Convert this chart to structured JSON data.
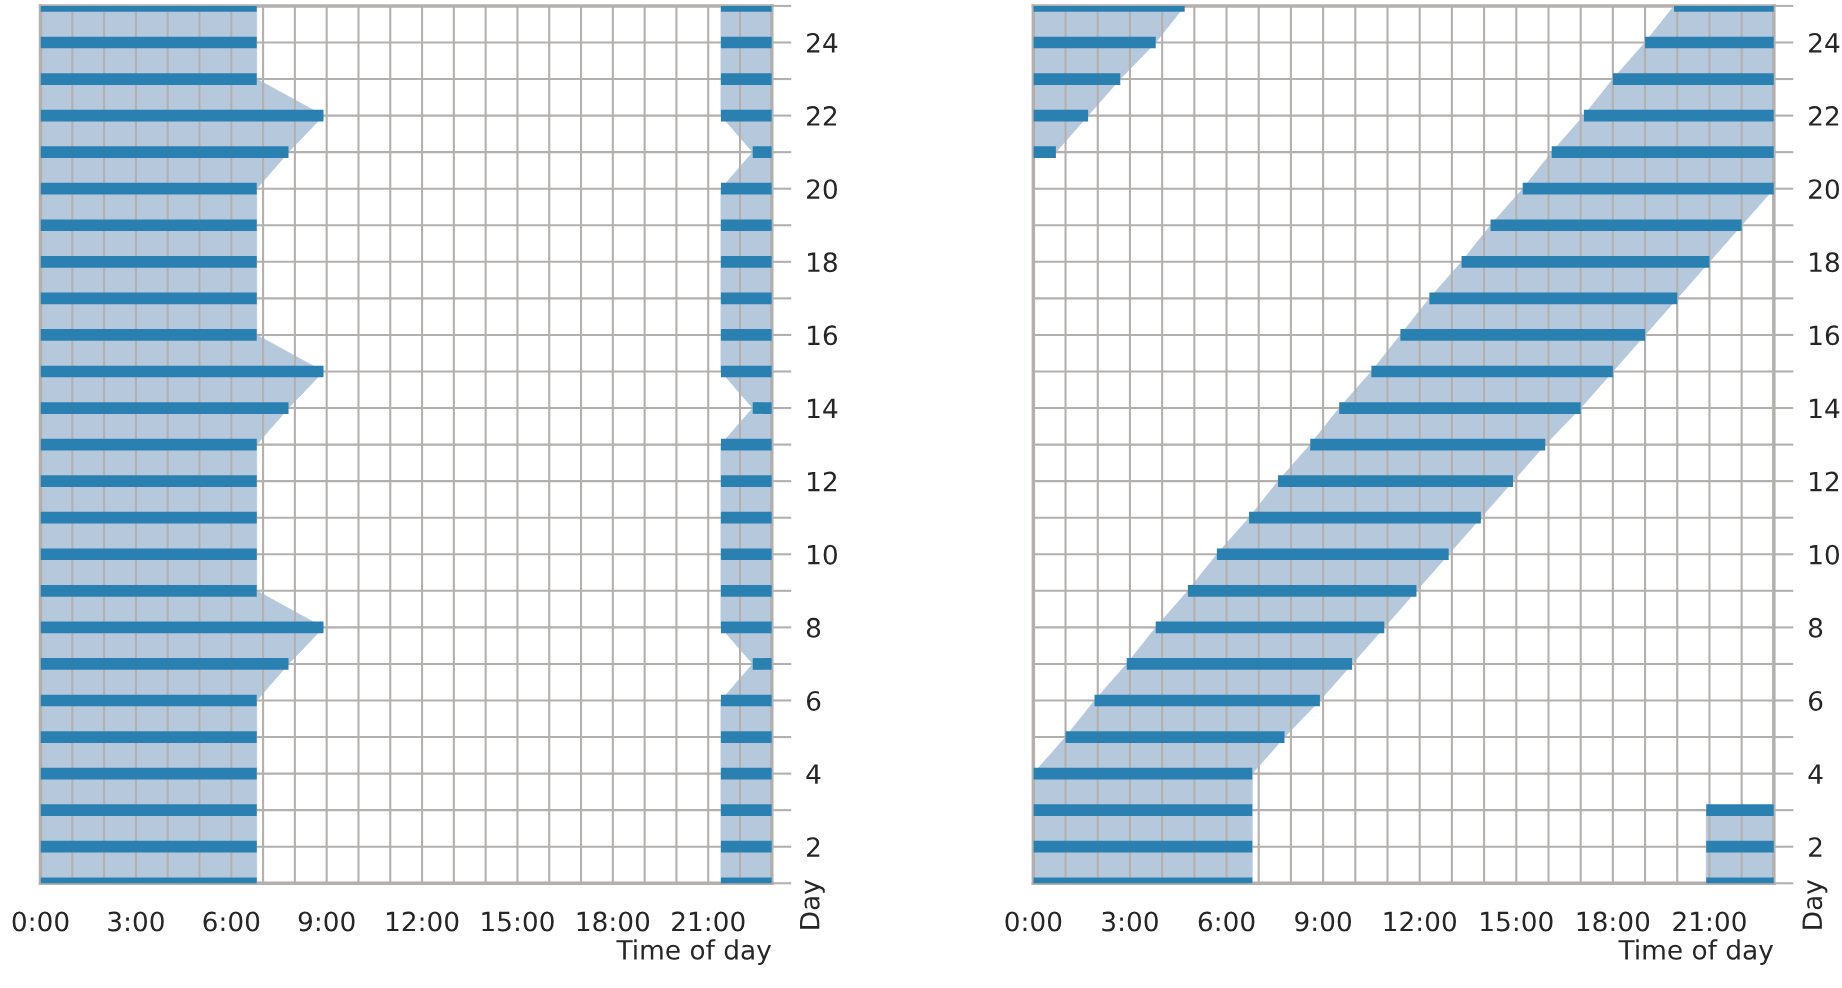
{
  "chart_data": [
    {
      "type": "bar",
      "orientation": "horizontal",
      "xlabel": "Time of day",
      "ylabel": "Day",
      "grid": true,
      "legend": false,
      "categories": [
        null,
        "24",
        null,
        "22",
        null,
        "20",
        null,
        "18",
        null,
        "16",
        null,
        "14",
        null,
        "12",
        null,
        "10",
        null,
        "8",
        null,
        "6",
        null,
        "4",
        null,
        "2",
        null
      ],
      "xlim": [
        0,
        23
      ],
      "xticks": [
        {
          "value": 0,
          "label": "0:00"
        },
        {
          "value": 1,
          "label": null
        },
        {
          "value": 2,
          "label": null
        },
        {
          "value": 3,
          "label": "3:00"
        },
        {
          "value": 4,
          "label": null
        },
        {
          "value": 5,
          "label": null
        },
        {
          "value": 6,
          "label": "6:00"
        },
        {
          "value": 7,
          "label": null
        },
        {
          "value": 8,
          "label": null
        },
        {
          "value": 9,
          "label": "9:00"
        },
        {
          "value": 10,
          "label": null
        },
        {
          "value": 11,
          "label": null
        },
        {
          "value": 12,
          "label": "12:00"
        },
        {
          "value": 13,
          "label": null
        },
        {
          "value": 14,
          "label": null
        },
        {
          "value": 15,
          "label": "15:00"
        },
        {
          "value": 16,
          "label": null
        },
        {
          "value": 17,
          "label": null
        },
        {
          "value": 18,
          "label": "18:00"
        },
        {
          "value": 19,
          "label": null
        },
        {
          "value": 20,
          "label": null
        },
        {
          "value": 21,
          "label": "21:00"
        },
        {
          "value": 22,
          "label": null
        },
        {
          "value": 23,
          "label": null
        }
      ],
      "series": [
        {
          "color": "#2a80b1",
          "base": [
            0,
            0,
            0,
            0,
            0,
            0,
            0,
            0,
            0,
            0,
            0,
            0,
            0,
            0,
            0,
            0,
            0,
            0,
            0,
            0,
            0,
            0,
            0,
            0,
            0
          ],
          "values": [
            6.8,
            6.8,
            6.8,
            8.9,
            7.8,
            6.8,
            6.8,
            6.8,
            6.8,
            6.8,
            8.9,
            7.8,
            6.8,
            6.8,
            6.8,
            6.8,
            6.8,
            8.9,
            7.8,
            6.8,
            6.8,
            6.8,
            6.8,
            6.8,
            6.8
          ]
        },
        {
          "color": "#2a80b1",
          "base": [
            21.4,
            21.4,
            21.4,
            21.4,
            22.4,
            21.4,
            21.4,
            21.4,
            21.4,
            21.4,
            21.4,
            22.4,
            21.4,
            21.4,
            21.4,
            21.4,
            21.4,
            21.4,
            22.4,
            21.4,
            21.4,
            21.4,
            21.4,
            21.4,
            21.4
          ],
          "values": [
            1.6,
            1.6,
            1.6,
            1.6,
            0.6,
            1.6,
            1.6,
            1.6,
            1.6,
            1.6,
            1.6,
            0.6,
            1.6,
            1.6,
            1.6,
            1.6,
            1.6,
            1.6,
            0.6,
            1.6,
            1.6,
            1.6,
            1.6,
            1.6,
            1.6
          ]
        }
      ]
    },
    {
      "type": "bar",
      "orientation": "horizontal",
      "xlabel": "Time of day",
      "ylabel": "Day",
      "grid": true,
      "legend": false,
      "categories": [
        null,
        "24",
        null,
        "22",
        null,
        "20",
        null,
        "18",
        null,
        "16",
        null,
        "14",
        null,
        "12",
        null,
        "10",
        null,
        "8",
        null,
        "6",
        null,
        "4",
        null,
        "2",
        null
      ],
      "xlim": [
        0,
        23
      ],
      "xticks": [
        {
          "value": 0,
          "label": "0:00"
        },
        {
          "value": 1,
          "label": null
        },
        {
          "value": 2,
          "label": null
        },
        {
          "value": 3,
          "label": "3:00"
        },
        {
          "value": 4,
          "label": null
        },
        {
          "value": 5,
          "label": null
        },
        {
          "value": 6,
          "label": "6:00"
        },
        {
          "value": 7,
          "label": null
        },
        {
          "value": 8,
          "label": null
        },
        {
          "value": 9,
          "label": "9:00"
        },
        {
          "value": 10,
          "label": null
        },
        {
          "value": 11,
          "label": null
        },
        {
          "value": 12,
          "label": "12:00"
        },
        {
          "value": 13,
          "label": null
        },
        {
          "value": 14,
          "label": null
        },
        {
          "value": 15,
          "label": "15:00"
        },
        {
          "value": 16,
          "label": null
        },
        {
          "value": 17,
          "label": null
        },
        {
          "value": 18,
          "label": "18:00"
        },
        {
          "value": 19,
          "label": null
        },
        {
          "value": 20,
          "label": null
        },
        {
          "value": 21,
          "label": "21:00"
        },
        {
          "value": 22,
          "label": null
        },
        {
          "value": 23,
          "label": null
        }
      ],
      "series": [
        {
          "color": "#2a80b1",
          "base": [
            19.9,
            19.0,
            18.0,
            17.1,
            16.1,
            15.2,
            14.2,
            13.3,
            12.3,
            11.4,
            10.5,
            9.5,
            8.6,
            7.6,
            6.7,
            5.7,
            4.8,
            3.8,
            2.9,
            1.9,
            1.0,
            0,
            0,
            0,
            0
          ],
          "values": [
            3.1,
            4.0,
            5.0,
            5.9,
            6.9,
            7.8,
            7.8,
            7.7,
            7.7,
            7.6,
            7.5,
            7.5,
            7.3,
            7.3,
            7.2,
            7.2,
            7.1,
            7.1,
            7.0,
            7.0,
            6.8,
            6.8,
            6.8,
            6.8,
            6.8
          ]
        },
        {
          "color": "#2a80b1",
          "base": [
            0,
            0,
            0,
            0,
            0,
            null,
            null,
            null,
            null,
            null,
            null,
            null,
            null,
            null,
            null,
            null,
            null,
            null,
            null,
            null,
            null,
            null,
            20.9,
            20.9,
            20.9
          ],
          "values": [
            4.7,
            3.8,
            2.7,
            1.7,
            0.7,
            null,
            null,
            null,
            null,
            null,
            null,
            null,
            null,
            null,
            null,
            null,
            null,
            null,
            null,
            null,
            null,
            null,
            2.1,
            2.1,
            2.1
          ]
        }
      ]
    }
  ]
}
